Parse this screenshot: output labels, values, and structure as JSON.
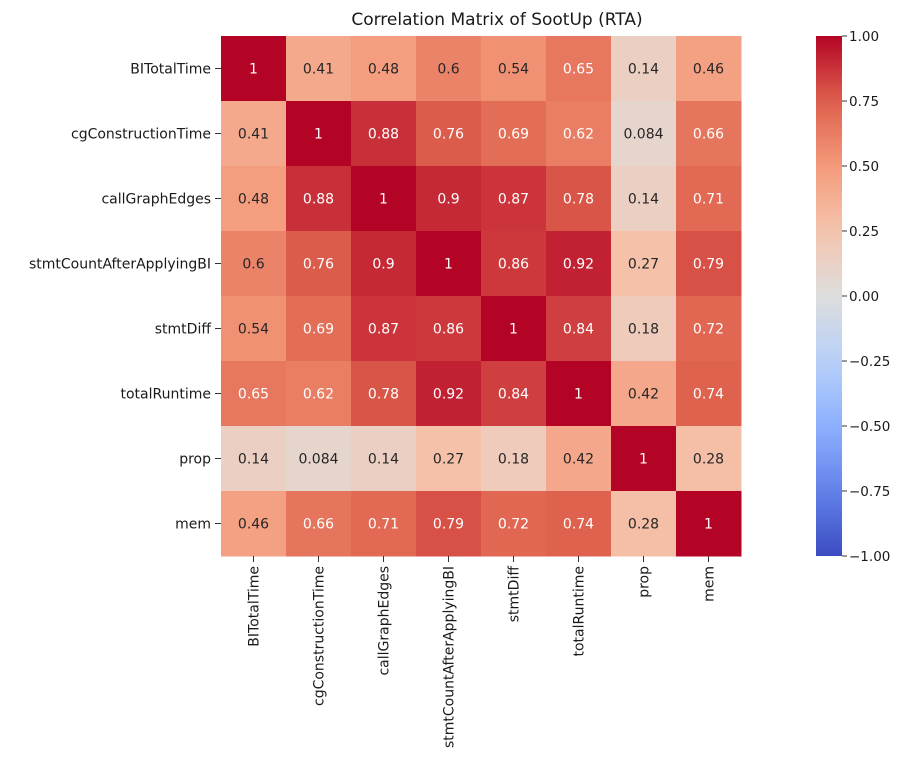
{
  "chart_data": {
    "type": "heatmap",
    "title": "Correlation Matrix of SootUp (RTA)",
    "xlabel": "",
    "ylabel": "",
    "row_labels": [
      "BITotalTime",
      "cgConstructionTime",
      "callGraphEdges",
      "stmtCountAfterApplyingBI",
      "stmtDiff",
      "totalRuntime",
      "prop",
      "mem"
    ],
    "col_labels": [
      "BITotalTime",
      "cgConstructionTime",
      "callGraphEdges",
      "stmtCountAfterApplyingBI",
      "stmtDiff",
      "totalRuntime",
      "prop",
      "mem"
    ],
    "values": [
      [
        1,
        0.41,
        0.48,
        0.6,
        0.54,
        0.65,
        0.14,
        0.46
      ],
      [
        0.41,
        1,
        0.88,
        0.76,
        0.69,
        0.62,
        0.084,
        0.66
      ],
      [
        0.48,
        0.88,
        1,
        0.9,
        0.87,
        0.78,
        0.14,
        0.71
      ],
      [
        0.6,
        0.76,
        0.9,
        1,
        0.86,
        0.92,
        0.27,
        0.79
      ],
      [
        0.54,
        0.69,
        0.87,
        0.86,
        1,
        0.84,
        0.18,
        0.72
      ],
      [
        0.65,
        0.62,
        0.78,
        0.92,
        0.84,
        1,
        0.42,
        0.74
      ],
      [
        0.14,
        0.084,
        0.14,
        0.27,
        0.18,
        0.42,
        1,
        0.28
      ],
      [
        0.46,
        0.66,
        0.71,
        0.79,
        0.72,
        0.74,
        0.28,
        1
      ]
    ],
    "annotated": true,
    "colormap": "coolwarm",
    "vmin": -1.0,
    "vmax": 1.0,
    "colorbar_ticks": [
      "1.00",
      "0.75",
      "0.50",
      "0.25",
      "0.00",
      "−0.25",
      "−0.50",
      "−0.75",
      "−1.00"
    ],
    "colorbar_tick_values": [
      1.0,
      0.75,
      0.5,
      0.25,
      0.0,
      -0.25,
      -0.5,
      -0.75,
      -1.0
    ],
    "legend": "colorbar-right",
    "grid": false
  }
}
